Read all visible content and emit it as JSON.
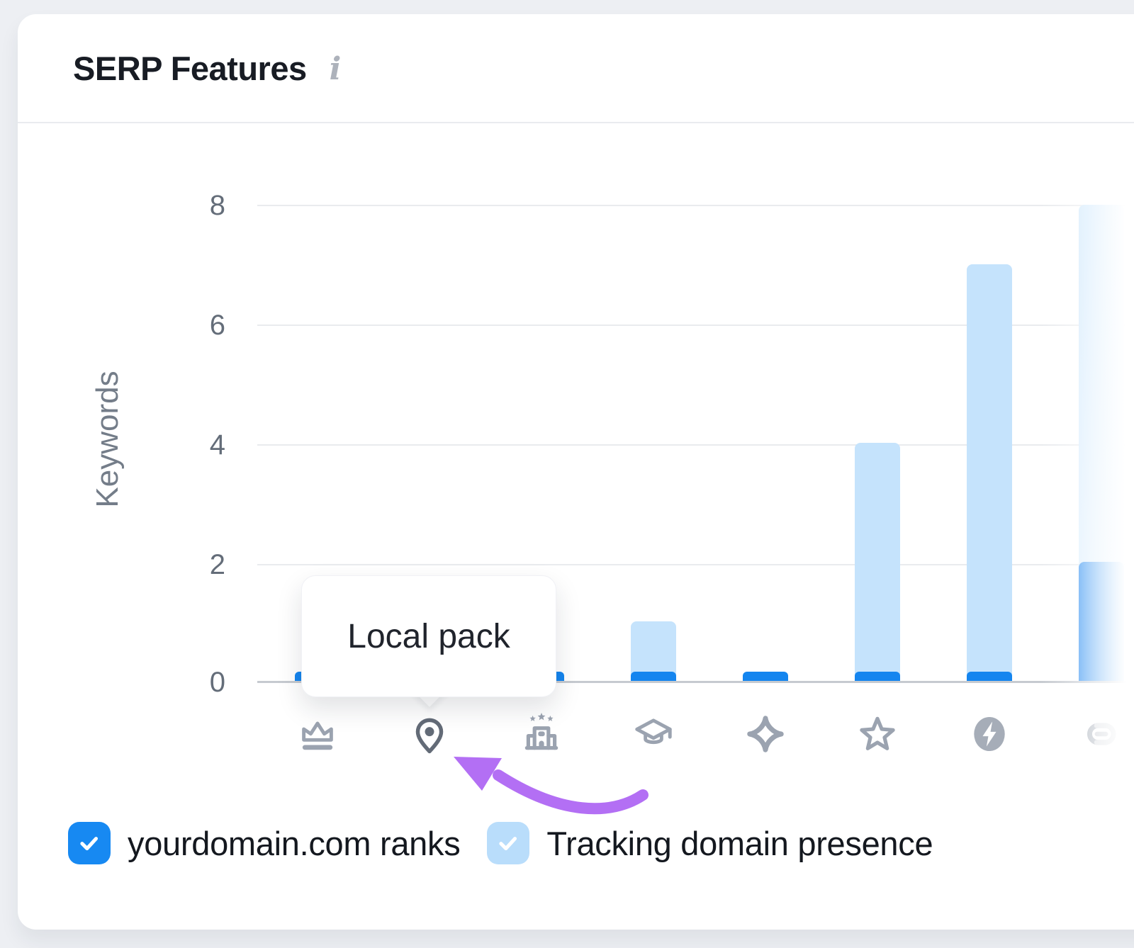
{
  "header": {
    "title": "SERP Features",
    "info_icon": "info-icon"
  },
  "chart_data": {
    "type": "bar",
    "title": "SERP Features",
    "xlabel": "",
    "ylabel": "Keywords",
    "ylim": [
      0,
      8
    ],
    "y_tick_labels": [
      "8",
      "6",
      "4",
      "2",
      "0"
    ],
    "grid": true,
    "legend_position": "bottom",
    "categories": [
      "crown-icon",
      "location-pin-icon",
      "hotel-pack-icon",
      "graduation-cap-icon",
      "sparkle-icon",
      "star-icon",
      "amp-icon",
      "link-icon"
    ],
    "series": [
      {
        "name": "yourdomain.com ranks",
        "color": "#1485ef",
        "values": [
          0,
          0,
          0,
          0,
          0,
          0,
          0,
          2
        ]
      },
      {
        "name": "Tracking domain presence",
        "color": "#c5e3fc",
        "values": [
          0,
          0,
          0,
          1,
          0,
          4,
          7,
          8
        ]
      }
    ],
    "zero_values_rendered_as_baseline_tick": true,
    "second_category_bars_hidden_by_tooltip": true
  },
  "tooltip": {
    "label": "Local pack",
    "target_icon": "location-pin-icon"
  },
  "legend": {
    "items": [
      {
        "label": "yourdomain.com ranks",
        "checked": true,
        "color": "#1789f2"
      },
      {
        "label": "Tracking domain presence",
        "checked": true,
        "color": "#b9ddfb"
      }
    ]
  },
  "colors": {
    "accent_blue": "#1485ef",
    "light_blue_bar": "#c5e3fc",
    "page_background": "#edeff3",
    "card_background": "#ffffff",
    "gridline": "#e9ebee",
    "axis_text": "#646d79",
    "icon_gray": "#9ba3b0",
    "active_icon_gray": "#636b77",
    "arrow_purple": "#b36ff4"
  }
}
